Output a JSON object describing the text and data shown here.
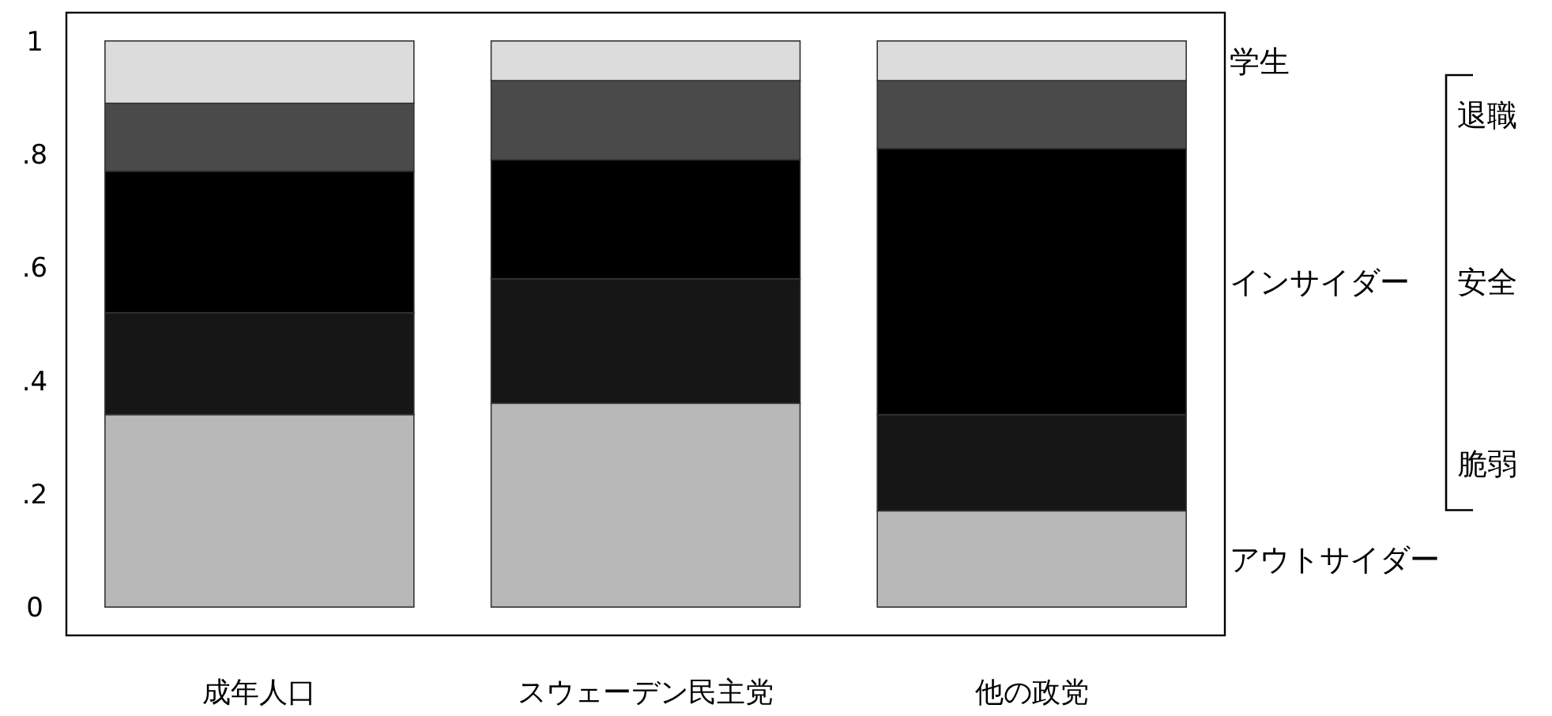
{
  "chart_data": {
    "type": "bar",
    "stacked": true,
    "categories": [
      "成年人口",
      "スウェーデン民主党",
      "他の政党"
    ],
    "series": [
      {
        "name": "アウトサイダー",
        "color": "#b8b8b8",
        "values": [
          0.34,
          0.36,
          0.17
        ]
      },
      {
        "name": "脆弱",
        "color": "#161616",
        "values": [
          0.18,
          0.22,
          0.17
        ]
      },
      {
        "name": "安全",
        "color": "#000000",
        "values": [
          0.25,
          0.21,
          0.47
        ]
      },
      {
        "name": "退職",
        "color": "#4a4a4a",
        "values": [
          0.12,
          0.14,
          0.12
        ]
      },
      {
        "name": "学生",
        "color": "#dcdcdc",
        "values": [
          0.11,
          0.07,
          0.07
        ]
      }
    ],
    "annotations": [
      "インサイダー"
    ],
    "ylim": [
      -0.05,
      1.05
    ],
    "yticks": [
      0,
      {
        "value": 0.2,
        "label": ".2"
      },
      {
        "value": 0.4,
        "label": ".4"
      },
      {
        "value": 0.6,
        "label": ".6"
      },
      {
        "value": 0.8,
        "label": ".8"
      },
      1
    ],
    "grid": false
  }
}
